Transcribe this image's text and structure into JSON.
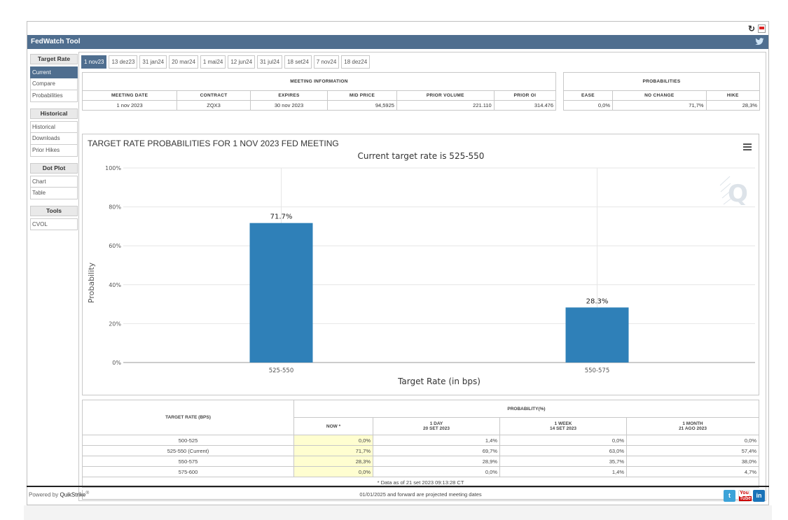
{
  "app": {
    "title": "FedWatch Tool",
    "powered_by": "Powered by",
    "brand": "QuikStrike",
    "brand_mark": "®"
  },
  "sidebar": {
    "groups": [
      {
        "heading": "Target Rate",
        "items": [
          "Current",
          "Compare",
          "Probabilities"
        ]
      },
      {
        "heading": "Historical",
        "items": [
          "Historical",
          "Downloads",
          "Prior Hikes"
        ]
      },
      {
        "heading": "Dot Plot",
        "items": [
          "Chart",
          "Table"
        ]
      },
      {
        "heading": "Tools",
        "items": [
          "CVOL"
        ]
      }
    ],
    "active": "Current"
  },
  "tabs": [
    "1 nov23",
    "13 dez23",
    "31 jan24",
    "20 mar24",
    "1 mai24",
    "12 jun24",
    "31 jul24",
    "18 set24",
    "7 nov24",
    "18 dez24"
  ],
  "active_tab": "1 nov23",
  "meeting_info": {
    "title": "MEETING INFORMATION",
    "headers": [
      "MEETING DATE",
      "CONTRACT",
      "EXPIRES",
      "MID PRICE",
      "PRIOR VOLUME",
      "PRIOR OI"
    ],
    "row": [
      "1 nov 2023",
      "ZQX3",
      "30 nov 2023",
      "94,5925",
      "221.110",
      "314.476"
    ]
  },
  "probabilities": {
    "title": "PROBABILITIES",
    "headers": [
      "EASE",
      "NO CHANGE",
      "HIKE"
    ],
    "row": [
      "0,0%",
      "71,7%",
      "28,3%"
    ]
  },
  "chart_data": {
    "type": "bar",
    "title": "TARGET RATE PROBABILITIES FOR 1 NOV 2023 FED MEETING",
    "subtitle": "Current target rate is 525-550",
    "xlabel": "Target Rate (in bps)",
    "ylabel": "Probability",
    "categories": [
      "525-550",
      "550-575"
    ],
    "values": [
      71.7,
      28.3
    ],
    "data_labels": [
      "71.7%",
      "28.3%"
    ],
    "ylim": [
      0,
      100
    ],
    "yticks": [
      "0%",
      "20%",
      "40%",
      "60%",
      "80%",
      "100%"
    ],
    "bar_color": "#2f80b8",
    "grid": true
  },
  "prob_table": {
    "col_target": "TARGET RATE (BPS)",
    "col_group": "PROBABILITY(%)",
    "subheaders": [
      {
        "line1": "NOW *",
        "line2": ""
      },
      {
        "line1": "1 DAY",
        "line2": "20 SET 2023"
      },
      {
        "line1": "1 WEEK",
        "line2": "14 SET 2023"
      },
      {
        "line1": "1 MONTH",
        "line2": "21 AGO 2023"
      }
    ],
    "rows": [
      {
        "rate": "500-525",
        "values": [
          "0,0%",
          "1,4%",
          "0,0%",
          "0,0%"
        ]
      },
      {
        "rate": "525-550 (Current)",
        "values": [
          "71,7%",
          "69,7%",
          "63,0%",
          "57,4%"
        ]
      },
      {
        "rate": "550-575",
        "values": [
          "28,3%",
          "28,9%",
          "35,7%",
          "38,0%"
        ]
      },
      {
        "rate": "575-600",
        "values": [
          "0,0%",
          "0,0%",
          "1,4%",
          "4,7%"
        ]
      }
    ],
    "note": "* Data as of 21 set 2023 09:13:28 CT",
    "projected": "01/01/2025 and forward are projected meeting dates"
  },
  "icons": {
    "refresh": "refresh-icon",
    "pdf": "pdf-icon",
    "twitter": "twitter-icon",
    "youtube": "youtube-icon",
    "linkedin": "linkedin-icon",
    "menu": "hamburger-menu-icon",
    "watermark": "quikstrike-logo"
  }
}
